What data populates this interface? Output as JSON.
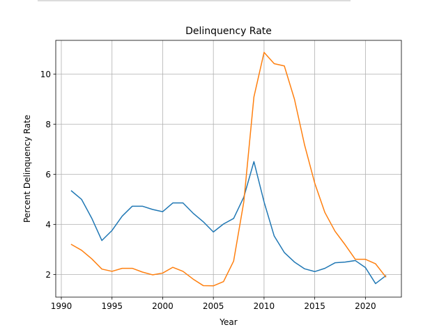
{
  "chart_data": {
    "type": "line",
    "title": "Delinquency Rate",
    "xlabel": "Year",
    "ylabel": "Percent Delinquency Rate",
    "xlim": [
      1989.45,
      2023.55
    ],
    "ylim": [
      1.1,
      11.35
    ],
    "xticks": [
      1990,
      1995,
      2000,
      2005,
      2010,
      2015,
      2020
    ],
    "yticks": [
      2,
      4,
      6,
      8,
      10
    ],
    "grid": true,
    "legend": "none",
    "x": [
      1991,
      1992,
      1993,
      1994,
      1995,
      1996,
      1997,
      1998,
      1999,
      2000,
      2001,
      2002,
      2003,
      2004,
      2005,
      2006,
      2007,
      2008,
      2009,
      2010,
      2011,
      2012,
      2013,
      2014,
      2015,
      2016,
      2017,
      2018,
      2019,
      2020,
      2021,
      2022
    ],
    "series": [
      {
        "color": "#1f77b4",
        "values": [
          5.34,
          5.0,
          4.25,
          3.36,
          3.76,
          4.33,
          4.73,
          4.73,
          4.6,
          4.51,
          4.86,
          4.86,
          4.45,
          4.11,
          3.7,
          4.02,
          4.24,
          5.09,
          6.51,
          4.9,
          3.54,
          2.88,
          2.5,
          2.23,
          2.12,
          2.25,
          2.47,
          2.5,
          2.56,
          2.28,
          1.64,
          1.95
        ]
      },
      {
        "color": "#ff7f0e",
        "values": [
          3.2,
          2.97,
          2.63,
          2.22,
          2.13,
          2.25,
          2.25,
          2.1,
          1.99,
          2.06,
          2.29,
          2.13,
          1.82,
          1.56,
          1.55,
          1.72,
          2.54,
          4.9,
          9.09,
          10.87,
          10.42,
          10.33,
          9.0,
          7.17,
          5.65,
          4.48,
          3.73,
          3.19,
          2.61,
          2.61,
          2.43,
          1.91
        ]
      }
    ]
  },
  "colors": {
    "grid": "#b0b0b0",
    "frame": "#000000"
  }
}
